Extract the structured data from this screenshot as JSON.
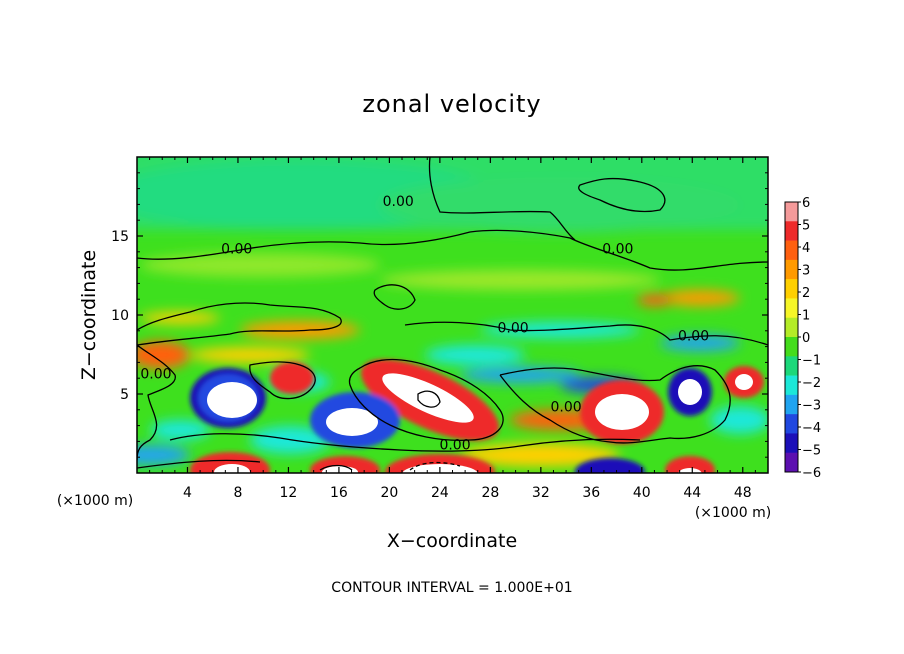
{
  "chart_data": {
    "type": "heatmap",
    "title": "zonal velocity",
    "xlabel": "X−coordinate",
    "ylabel": "Z−coordinate",
    "x_unit": "(×1000 m)",
    "xlim": [
      0,
      50
    ],
    "ylim": [
      0,
      20
    ],
    "x_ticks": [
      4,
      8,
      12,
      16,
      20,
      24,
      28,
      32,
      36,
      40,
      44,
      48
    ],
    "y_ticks": [
      5,
      10,
      15
    ],
    "colorbar": {
      "ticks": [
        "6",
        "5",
        "4",
        "3",
        "2",
        "1",
        "0",
        "−1",
        "−2",
        "−3",
        "−4",
        "−5",
        "−6"
      ],
      "colors": [
        "#f49a9a",
        "#ee2a2a",
        "#ff6010",
        "#ff9a00",
        "#ffd000",
        "#f6f628",
        "#b4ec28",
        "#44dc1c",
        "#1cd87a",
        "#1ce8d8",
        "#20a4f0",
        "#2048e0",
        "#1c10b8",
        "#5c10b0"
      ]
    },
    "contour_labels": [
      {
        "text": "0.00",
        "x": 20.7,
        "y": 17.2
      },
      {
        "text": "0.00",
        "x": 7.9,
        "y": 14.2
      },
      {
        "text": "0.00",
        "x": 38.1,
        "y": 14.2
      },
      {
        "text": "0.00",
        "x": 29.8,
        "y": 9.2
      },
      {
        "text": "0.00",
        "x": 44.1,
        "y": 8.7
      },
      {
        "text": "0.00",
        "x": 1.5,
        "y": 6.3
      },
      {
        "text": "0.00",
        "x": 34.0,
        "y": 4.2
      },
      {
        "text": "0.00",
        "x": 25.2,
        "y": 1.8
      }
    ],
    "footer": "CONTOUR INTERVAL = 1.000E+01"
  }
}
